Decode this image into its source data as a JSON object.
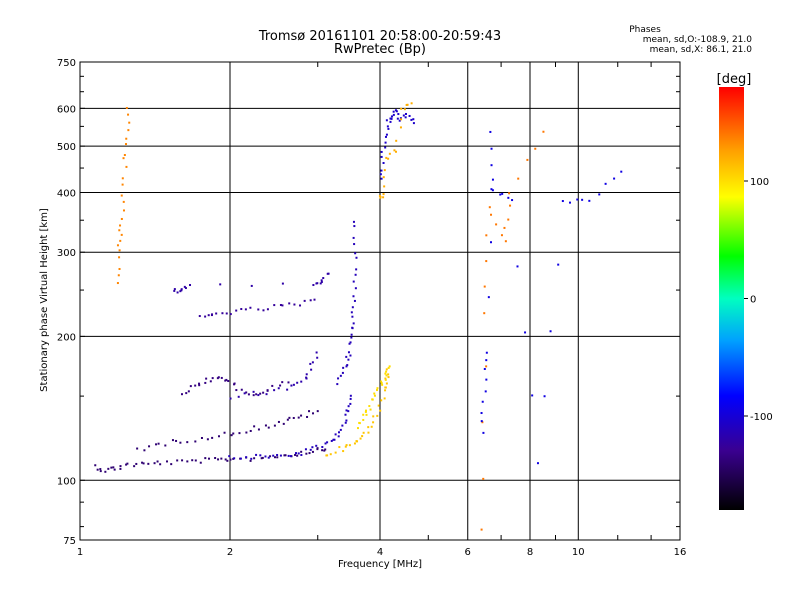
{
  "chart_data": {
    "type": "scatter",
    "title": "Tromsø 20161101 20:58:00-20:59:43",
    "subtitle": "RwPretec (Bp)",
    "xlabel": "Frequency [MHz]",
    "ylabel": "Stationary phase Virtual Height [km]",
    "x_scale": "log",
    "y_scale": "log",
    "xlim": [
      1,
      16
    ],
    "ylim": [
      75,
      750
    ],
    "x_ticks": [
      "1",
      "2",
      "4",
      "6",
      "8",
      "10",
      "16"
    ],
    "y_ticks": [
      "75",
      "100",
      "200",
      "300",
      "400",
      "500",
      "600",
      "750"
    ],
    "x_tick_values": [
      1,
      2,
      4,
      6,
      8,
      10,
      16
    ],
    "y_tick_values": [
      75,
      100,
      200,
      300,
      400,
      500,
      600,
      750
    ],
    "grid": true,
    "phase_note": {
      "heading": "Phases",
      "line1": "mean, sd,O:-108.9, 21.0",
      "line2": "mean, sd,X: 86.1, 21.0"
    },
    "colorbar": {
      "label": "[deg]",
      "ticks": [
        "100",
        "0",
        "-100"
      ],
      "tick_values": [
        100,
        0,
        -100
      ],
      "range": [
        -180,
        180
      ]
    },
    "traces": [
      {
        "name": "o-low",
        "phase": -140,
        "x": [
          1.07,
          1.12,
          1.18,
          1.25,
          1.35,
          1.45,
          1.6,
          1.75,
          1.9,
          2.0,
          2.2,
          2.4,
          2.6,
          2.8,
          3.0,
          3.1
        ],
        "y": [
          107,
          105,
          106,
          108,
          108,
          109,
          109,
          110,
          110,
          111,
          111,
          112,
          113,
          114,
          116,
          117
        ]
      },
      {
        "name": "o-mid",
        "phase": -110,
        "x": [
          2.0,
          2.2,
          2.4,
          2.6,
          2.8,
          3.0,
          3.2,
          3.3,
          3.4,
          3.45,
          3.5
        ],
        "y": [
          111,
          112,
          112,
          113,
          114,
          117,
          121,
          125,
          132,
          140,
          150
        ]
      },
      {
        "name": "o-upper",
        "phase": -140,
        "x": [
          1.3,
          1.45,
          1.6,
          1.8,
          2.0,
          2.2,
          2.4,
          2.6,
          2.8,
          3.0
        ],
        "y": [
          116,
          119,
          121,
          123,
          125,
          128,
          130,
          133,
          136,
          140
        ]
      },
      {
        "name": "o-cluster",
        "phase": -135,
        "x": [
          1.6,
          1.7,
          1.8,
          1.9,
          2.0,
          2.1,
          2.25,
          2.4,
          2.6
        ],
        "y": [
          150,
          158,
          162,
          165,
          160,
          155,
          150,
          155,
          160
        ]
      },
      {
        "name": "o-f1",
        "phase": -118,
        "x": [
          2.0,
          2.3,
          2.6,
          2.8,
          2.9,
          3.0
        ],
        "y": [
          150,
          152,
          155,
          160,
          170,
          185
        ]
      },
      {
        "name": "o-f2",
        "phase": -112,
        "x": [
          3.3,
          3.4,
          3.45,
          3.5,
          3.52,
          3.54,
          3.55,
          3.56,
          3.57
        ],
        "y": [
          160,
          170,
          180,
          195,
          210,
          230,
          260,
          300,
          350
        ]
      },
      {
        "name": "o-spread",
        "phase": -125,
        "x": [
          1.75,
          1.85,
          2.0,
          2.2,
          2.45,
          2.7,
          2.95
        ],
        "y": [
          218,
          222,
          225,
          227,
          230,
          233,
          236
        ]
      },
      {
        "name": "o-es",
        "phase": -120,
        "x": [
          1.55,
          1.6,
          1.65,
          2.95,
          3.05,
          3.15
        ],
        "y": [
          248,
          252,
          255,
          255,
          262,
          270
        ]
      },
      {
        "name": "x-trace",
        "phase": 110,
        "x": [
          3.1,
          3.3,
          3.5,
          3.65,
          3.8,
          3.95,
          4.05,
          4.1,
          4.15
        ],
        "y": [
          113,
          116,
          118,
          122,
          128,
          138,
          150,
          160,
          170
        ]
      },
      {
        "name": "x-trace2",
        "phase": 100,
        "x": [
          3.6,
          3.7,
          3.8,
          3.9,
          4.0,
          4.1,
          4.15
        ],
        "y": [
          130,
          136,
          142,
          150,
          158,
          165,
          172
        ]
      },
      {
        "name": "o-high",
        "phase": -105,
        "x": [
          4.0,
          4.05,
          4.1,
          4.15,
          4.2,
          4.3,
          4.4,
          4.55,
          4.7
        ],
        "y": [
          430,
          470,
          520,
          560,
          580,
          590,
          570,
          580,
          560
        ]
      },
      {
        "name": "x-high",
        "phase": 120,
        "x": [
          4.0,
          4.05,
          4.15,
          4.3,
          4.45,
          4.6
        ],
        "y": [
          390,
          395,
          470,
          490,
          600,
          610
        ]
      },
      {
        "name": "x-lowfreq",
        "phase": 135,
        "x": [
          1.19,
          1.2,
          1.21,
          1.22,
          1.23,
          1.24,
          1.25
        ],
        "y": [
          260,
          300,
          330,
          380,
          450,
          520,
          600
        ]
      },
      {
        "name": "x-gap",
        "phase": 140,
        "x": [
          6.4,
          6.5,
          6.6,
          7.1,
          7.3,
          8.5
        ],
        "y": [
          78,
          225,
          370,
          315,
          400,
          535
        ]
      },
      {
        "name": "o-gap",
        "phase": -95,
        "x": [
          6.4,
          6.5,
          6.6,
          6.7,
          6.8,
          7.3,
          8.3,
          9.3,
          10.5,
          12.3
        ],
        "y": [
          125,
          155,
          185,
          530,
          400,
          390,
          108,
          385,
          385,
          445
        ]
      }
    ]
  }
}
